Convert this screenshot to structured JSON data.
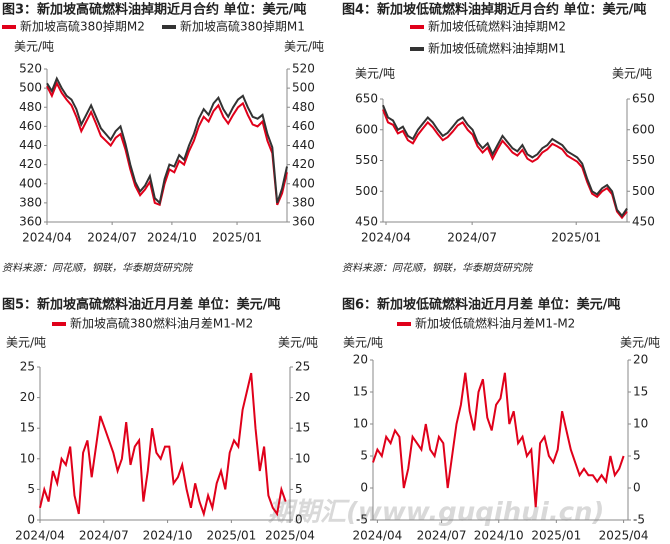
{
  "watermark": "期期汇(www.guqihui.cn)",
  "chart_data": [
    {
      "type": "line",
      "title": "图3：新加坡高硫燃料油掉期近月合约 单位：美元/吨",
      "y_label": "美元/吨",
      "y2_label": "美元/吨",
      "source": "资料来源：同花顺，钢联，华泰期货研究院",
      "ylim": [
        360,
        520
      ],
      "yticks": [
        360,
        380,
        400,
        420,
        440,
        460,
        480,
        500,
        520
      ],
      "y2lim": [
        360,
        520
      ],
      "y2ticks": [
        360,
        380,
        400,
        420,
        440,
        460,
        480,
        500,
        520
      ],
      "xlim": [
        0,
        49
      ],
      "xticks": [
        {
          "value": 0,
          "label": "2024/04"
        },
        {
          "value": 13.3,
          "label": "2024/07"
        },
        {
          "value": 25.5,
          "label": "2024/10"
        },
        {
          "value": 38.8,
          "label": "2025/01"
        }
      ],
      "series": [
        {
          "name": "新加坡高硫380掉期M2",
          "color": "#e0001a",
          "values": [
            502,
            492,
            505,
            495,
            488,
            482,
            470,
            455,
            465,
            475,
            463,
            450,
            445,
            440,
            448,
            452,
            436,
            415,
            398,
            388,
            394,
            402,
            380,
            378,
            400,
            415,
            412,
            424,
            420,
            434,
            445,
            460,
            470,
            465,
            476,
            482,
            470,
            463,
            472,
            480,
            484,
            472,
            462,
            460,
            465,
            445,
            432,
            378,
            390,
            412
          ]
        },
        {
          "name": "新加坡高硫380掉期M1",
          "color": "#333333",
          "values": [
            505,
            497,
            510,
            500,
            492,
            488,
            478,
            462,
            472,
            482,
            470,
            458,
            452,
            446,
            455,
            460,
            442,
            420,
            402,
            392,
            398,
            408,
            385,
            380,
            405,
            420,
            418,
            430,
            425,
            440,
            452,
            468,
            478,
            472,
            484,
            490,
            478,
            470,
            480,
            488,
            492,
            480,
            470,
            468,
            472,
            452,
            438,
            380,
            395,
            418
          ]
        }
      ]
    },
    {
      "type": "line",
      "title": "图4：新加坡低硫燃料油掉期近月合约 单位：美元/吨",
      "y_label": "美元/吨",
      "y2_label": "美元/吨",
      "source": "资料来源：同花顺，钢联，华泰期货研究院",
      "ylim": [
        450,
        650
      ],
      "yticks": [
        450,
        500,
        550,
        600,
        650
      ],
      "y2lim": [
        450,
        650
      ],
      "y2ticks": [
        450,
        500,
        550,
        600,
        650
      ],
      "xlim": [
        0,
        49
      ],
      "xticks": [
        {
          "value": 0.6,
          "label": "2024/04"
        },
        {
          "value": 17.9,
          "label": "2024/07"
        },
        {
          "value": 38.8,
          "label": "2025/01"
        }
      ],
      "series": [
        {
          "name": "新加坡低硫燃料油掉期M2",
          "color": "#e0001a",
          "values": [
            633,
            612,
            608,
            594,
            598,
            583,
            578,
            592,
            602,
            612,
            604,
            593,
            583,
            588,
            597,
            607,
            612,
            600,
            592,
            573,
            563,
            571,
            553,
            568,
            582,
            573,
            563,
            558,
            567,
            553,
            548,
            553,
            563,
            568,
            577,
            573,
            568,
            558,
            553,
            548,
            539,
            515,
            496,
            491,
            500,
            505,
            495,
            467,
            457,
            467
          ]
        },
        {
          "name": "新加坡低硫燃料油掉期M1",
          "color": "#333333",
          "values": [
            640,
            620,
            615,
            600,
            605,
            590,
            585,
            600,
            610,
            620,
            612,
            600,
            590,
            595,
            605,
            615,
            620,
            608,
            600,
            580,
            570,
            578,
            560,
            575,
            590,
            580,
            570,
            565,
            575,
            560,
            555,
            560,
            570,
            575,
            585,
            580,
            575,
            565,
            560,
            555,
            545,
            520,
            500,
            495,
            505,
            510,
            500,
            470,
            460,
            472
          ]
        }
      ]
    },
    {
      "type": "line",
      "title": "图5：新加坡高硫燃料油近月月差 单位：美元/吨",
      "y_label": "美元/吨",
      "y2_label": "美元/吨",
      "ylim": [
        0,
        25
      ],
      "yticks": [
        0,
        5,
        10,
        15,
        20,
        25
      ],
      "y2lim": [
        0,
        25
      ],
      "y2ticks": [
        0,
        5,
        10,
        15,
        20,
        25
      ],
      "xlim": [
        0,
        58
      ],
      "xticks": [
        {
          "value": 0,
          "label": "2024/04"
        },
        {
          "value": 14.8,
          "label": "2024/07"
        },
        {
          "value": 29.6,
          "label": "2024/10"
        },
        {
          "value": 44.4,
          "label": "2025/01"
        },
        {
          "value": 58,
          "label": "2025/04"
        }
      ],
      "series": [
        {
          "name": "新加坡高硫380燃料油月差M1-M2",
          "color": "#e0001a",
          "values": [
            2,
            5,
            3,
            8,
            6,
            10,
            9,
            12,
            4,
            1,
            11,
            13,
            7,
            12,
            17,
            15,
            13,
            11,
            8,
            10,
            16,
            9,
            12,
            13,
            3,
            8,
            15,
            11,
            10,
            12,
            12,
            6,
            7,
            9,
            5,
            2,
            6,
            3,
            1,
            4,
            2,
            6,
            8,
            5,
            11,
            13,
            12,
            18,
            21,
            24,
            15,
            8,
            12,
            4,
            2,
            1,
            5,
            3
          ]
        }
      ]
    },
    {
      "type": "line",
      "title": "图6：新加坡低硫燃料油近月月差 单位：美元/吨",
      "y_label": "美元/吨",
      "y2_label": "美元/吨",
      "ylim": [
        -5,
        20
      ],
      "yticks": [
        -5,
        0,
        5,
        10,
        15,
        20
      ],
      "y2lim": [
        -5,
        20
      ],
      "y2ticks": [
        -5,
        0,
        5,
        10,
        15,
        20
      ],
      "xlim": [
        0,
        58
      ],
      "xticks": [
        {
          "value": 1,
          "label": "2024/04"
        },
        {
          "value": 15.6,
          "label": "2024/07"
        },
        {
          "value": 28.6,
          "label": "2024/10"
        },
        {
          "value": 41.7,
          "label": "2025/01"
        },
        {
          "value": 57,
          "label": "2025/04"
        }
      ],
      "series": [
        {
          "name": "新加坡低硫燃料油月差M1-M2",
          "color": "#e0001a",
          "values": [
            4,
            6,
            5,
            8,
            7,
            9,
            8,
            0,
            3,
            8,
            7,
            6,
            10,
            6,
            5,
            8,
            7,
            0,
            5,
            10,
            13,
            18,
            12,
            9,
            15,
            17,
            11,
            9,
            13,
            14,
            18,
            10,
            12,
            7,
            8,
            5,
            6,
            -3,
            7,
            8,
            5,
            4,
            6,
            12,
            9,
            6,
            4,
            2,
            3,
            2,
            2,
            1,
            2,
            1,
            5,
            2,
            3,
            5
          ]
        }
      ]
    }
  ]
}
